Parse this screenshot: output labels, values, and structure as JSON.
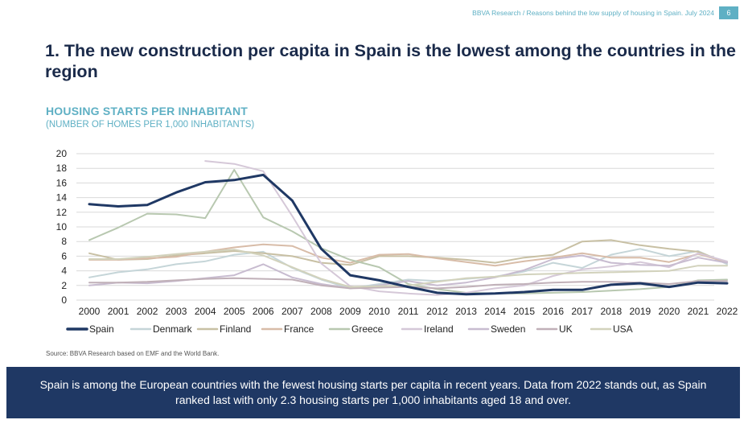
{
  "header": {
    "running_title": "BBVA Research / Reasons behind the low supply of housing in Spain. July 2024",
    "page_number": "6"
  },
  "slide": {
    "title": "1. The new construction per capita in Spain is the lowest among the countries in the region"
  },
  "chart_data": {
    "type": "line",
    "title": "HOUSING STARTS PER INHABITANT",
    "subtitle": "(NUMBER OF HOMES PER 1,000 INHABITANTS)",
    "xlabel": "",
    "ylabel": "",
    "x": [
      "2000",
      "2001",
      "2002",
      "2003",
      "2004",
      "2005",
      "2006",
      "2007",
      "2008",
      "2009",
      "2010",
      "2011",
      "2012",
      "2013",
      "2014",
      "2015",
      "2016",
      "2017",
      "2018",
      "2019",
      "2020",
      "2021",
      "2022"
    ],
    "ylim": [
      0,
      20
    ],
    "yticks": [
      0,
      2,
      4,
      6,
      8,
      10,
      12,
      14,
      16,
      18,
      20
    ],
    "grid": true,
    "legend_position": "bottom",
    "series": [
      {
        "name": "Spain",
        "color": "#1f3864",
        "width": 3,
        "values": [
          13.1,
          12.8,
          13.0,
          14.7,
          16.1,
          16.4,
          17.1,
          13.6,
          7.0,
          3.4,
          2.7,
          1.8,
          1.0,
          0.8,
          0.9,
          1.1,
          1.4,
          1.4,
          2.1,
          2.3,
          1.8,
          2.4,
          2.3
        ]
      },
      {
        "name": "Denmark",
        "color": "#c5d5d8",
        "width": 2,
        "values": [
          3.1,
          3.8,
          4.2,
          4.9,
          5.3,
          6.2,
          6.6,
          4.4,
          2.8,
          1.6,
          2.2,
          2.8,
          2.6,
          2.9,
          3.2,
          3.9,
          5.1,
          4.4,
          6.2,
          7.0,
          6.0,
          6.7,
          4.9
        ]
      },
      {
        "name": "Finland",
        "color": "#c8c0a4",
        "width": 2,
        "values": [
          6.4,
          5.5,
          5.6,
          6.1,
          6.4,
          6.7,
          6.4,
          6.0,
          5.1,
          4.8,
          6.0,
          6.0,
          5.8,
          5.5,
          5.1,
          5.8,
          6.2,
          8.0,
          8.2,
          7.5,
          7.0,
          6.6,
          5.1
        ]
      },
      {
        "name": "France",
        "color": "#d8bca8",
        "width": 2,
        "values": [
          5.5,
          5.5,
          5.7,
          5.9,
          6.6,
          7.2,
          7.6,
          7.4,
          5.8,
          5.1,
          6.2,
          6.3,
          5.7,
          5.2,
          4.7,
          5.3,
          5.8,
          6.4,
          5.8,
          5.8,
          5.2,
          6.3,
          5.2
        ]
      },
      {
        "name": "Greece",
        "color": "#b8c8b0",
        "width": 2,
        "values": [
          8.2,
          9.9,
          11.8,
          11.7,
          11.2,
          17.8,
          11.3,
          9.4,
          7.1,
          5.5,
          4.5,
          2.2,
          1.5,
          1.0,
          0.9,
          0.9,
          1.0,
          1.1,
          1.3,
          1.5,
          1.8,
          2.7,
          2.8
        ]
      },
      {
        "name": "Ireland",
        "color": "#d5c8d8",
        "width": 2,
        "values": [
          null,
          null,
          null,
          null,
          19.0,
          18.6,
          17.6,
          11.5,
          5.0,
          1.9,
          1.2,
          0.9,
          0.7,
          1.0,
          1.6,
          2.0,
          3.3,
          4.2,
          4.6,
          5.2,
          4.5,
          6.4,
          5.3
        ]
      },
      {
        "name": "Sweden",
        "color": "#c8bcd0",
        "width": 2,
        "values": [
          2.0,
          2.4,
          2.3,
          2.6,
          3.0,
          3.4,
          4.9,
          3.1,
          2.2,
          1.6,
          2.0,
          2.6,
          2.0,
          2.4,
          3.1,
          4.1,
          5.6,
          6.1,
          5.1,
          4.8,
          4.7,
          5.8,
          5.1
        ]
      },
      {
        "name": "UK",
        "color": "#c0b0b8",
        "width": 2,
        "values": [
          2.4,
          2.4,
          2.5,
          2.7,
          2.9,
          3.0,
          2.9,
          2.8,
          2.0,
          1.6,
          1.7,
          1.8,
          1.6,
          1.8,
          2.1,
          2.2,
          2.4,
          2.5,
          2.5,
          2.4,
          2.2,
          2.6,
          2.6
        ]
      },
      {
        "name": "USA",
        "color": "#d2d2bc",
        "width": 2,
        "values": [
          5.6,
          5.6,
          5.9,
          6.3,
          6.6,
          6.9,
          6.1,
          4.5,
          2.9,
          1.8,
          1.9,
          2.0,
          2.5,
          3.0,
          3.2,
          3.5,
          3.6,
          3.7,
          3.8,
          3.9,
          4.0,
          4.7,
          4.7
        ]
      }
    ]
  },
  "footer": {
    "source": "Source: BBVA Research based on EMF and the World Bank.",
    "banner": "Spain is among the European countries with the fewest housing starts per capita in recent years. Data from 2022 stands out, as Spain ranked last with only 2.3 housing starts per 1,000 inhabitants aged 18 and over."
  },
  "colors": {
    "accent": "#5fb0c4",
    "banner_bg": "#1f3864",
    "title": "#1a2a4a"
  }
}
